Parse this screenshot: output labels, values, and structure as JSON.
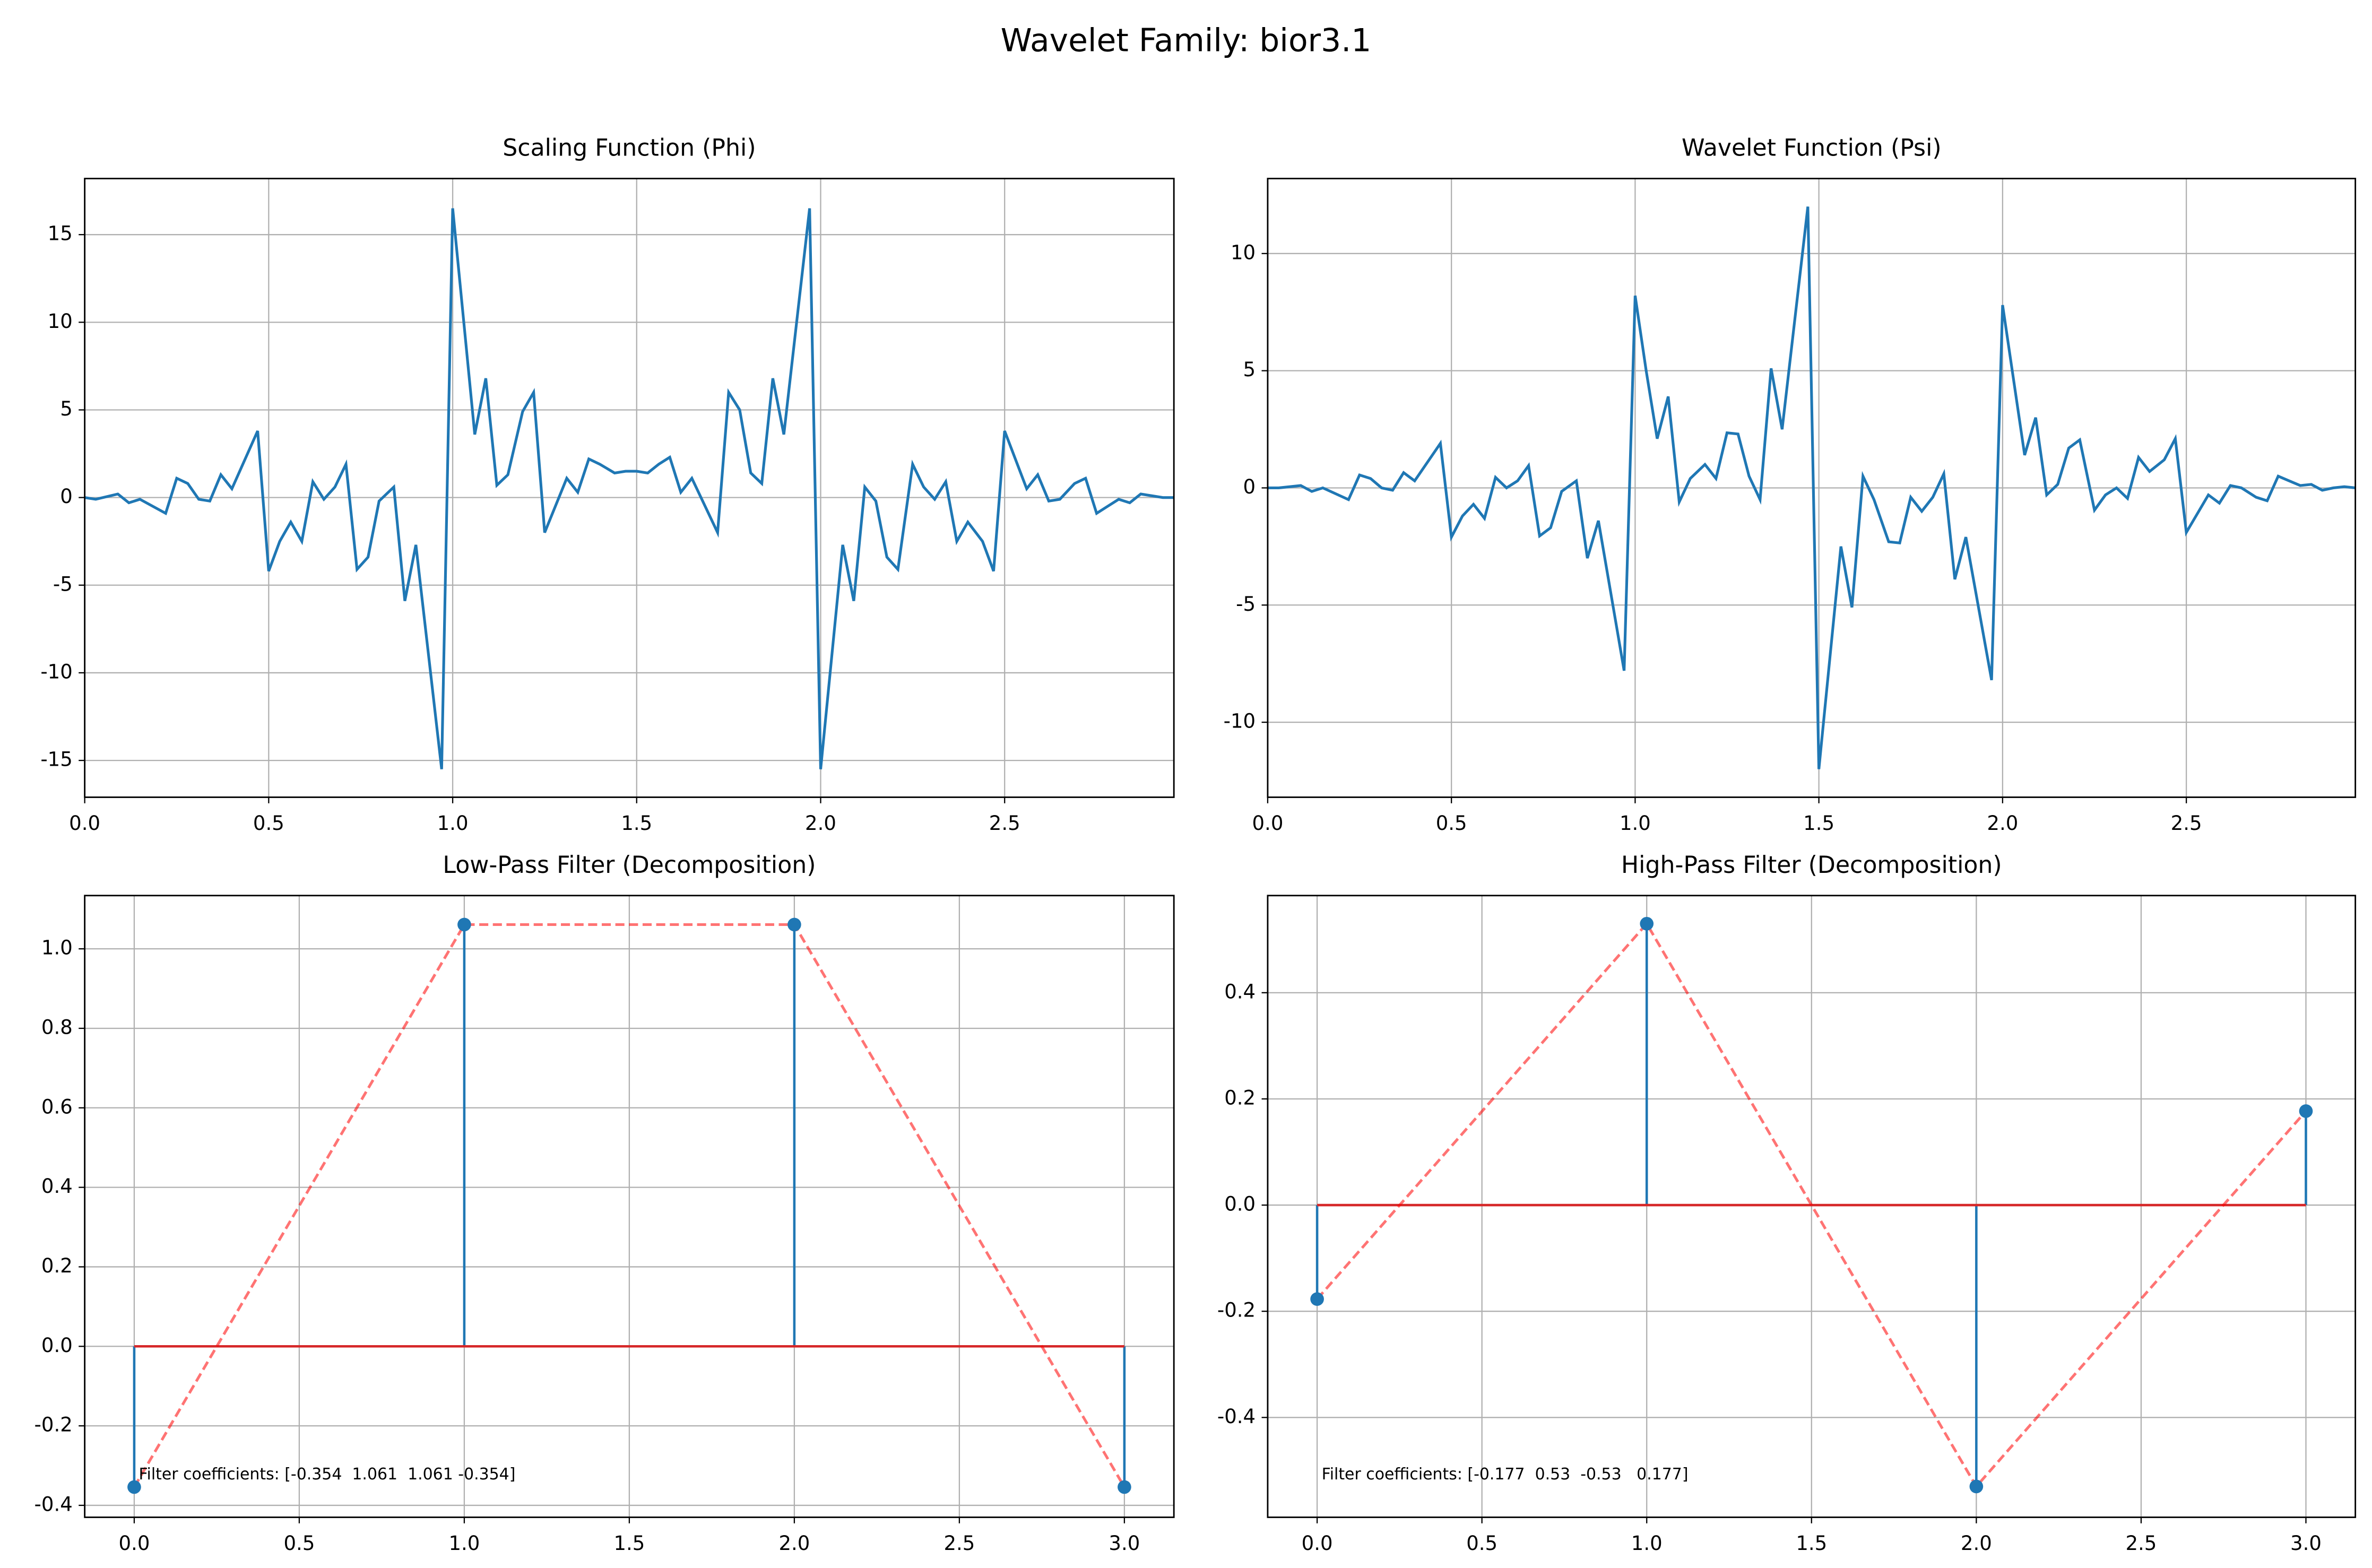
{
  "title": "Wavelet Family: bior3.1",
  "chart_data": [
    {
      "type": "line",
      "title": "Scaling Function (Phi)",
      "color": "#1f77b4",
      "grid": true,
      "x": [
        0,
        0.03,
        0.09,
        0.12,
        0.15,
        0.22,
        0.25,
        0.28,
        0.31,
        0.34,
        0.37,
        0.4,
        0.47,
        0.5,
        0.53,
        0.56,
        0.59,
        0.62,
        0.65,
        0.68,
        0.71,
        0.74,
        0.77,
        0.8,
        0.84,
        0.87,
        0.9,
        0.97,
        1.0,
        1.06,
        1.09,
        1.12,
        1.15,
        1.19,
        1.22,
        1.25,
        1.31,
        1.34,
        1.37,
        1.4,
        1.44,
        1.47,
        1.5,
        1.53,
        1.56,
        1.59,
        1.62,
        1.65,
        1.72,
        1.75,
        1.78,
        1.81,
        1.84,
        1.87,
        1.9,
        1.97,
        2.0,
        2.06,
        2.09,
        2.12,
        2.15,
        2.18,
        2.21,
        2.25,
        2.28,
        2.31,
        2.34,
        2.37,
        2.4,
        2.44,
        2.47,
        2.5,
        2.56,
        2.59,
        2.62,
        2.65,
        2.69,
        2.72,
        2.75,
        2.78,
        2.81,
        2.84,
        2.87,
        2.9,
        2.93,
        2.96
      ],
      "values": [
        0,
        -0.1,
        0.2,
        -0.3,
        -0.1,
        -0.9,
        1.1,
        0.8,
        -0.1,
        -0.2,
        1.3,
        0.5,
        3.8,
        -4.2,
        -2.5,
        -1.4,
        -2.5,
        0.9,
        -0.1,
        0.6,
        1.9,
        -4.1,
        -3.4,
        -0.2,
        0.6,
        -5.9,
        -2.7,
        -15.5,
        16.5,
        3.6,
        6.8,
        0.7,
        1.3,
        4.9,
        6.0,
        -2.0,
        1.1,
        0.3,
        2.2,
        1.9,
        1.4,
        1.5,
        1.5,
        1.4,
        1.9,
        2.3,
        0.3,
        1.1,
        -2.0,
        6.0,
        5.0,
        1.4,
        0.8,
        6.8,
        3.6,
        16.5,
        -15.5,
        -2.7,
        -5.9,
        0.6,
        -0.2,
        -3.4,
        -4.1,
        1.9,
        0.6,
        -0.1,
        0.9,
        -2.5,
        -1.4,
        -2.5,
        -4.2,
        3.8,
        0.5,
        1.3,
        -0.2,
        -0.1,
        0.8,
        1.1,
        -0.9,
        -0.5,
        -0.1,
        -0.3,
        0.2,
        0.1,
        0,
        0
      ],
      "xlim": [
        0,
        2.96
      ],
      "ylim": [
        -17.1,
        18.2
      ],
      "xticks": [
        {
          "value": 0,
          "label": "0.0"
        },
        0.5,
        {
          "value": 1,
          "label": "1.0"
        },
        1.5,
        {
          "value": 2,
          "label": "2.0"
        },
        2.5
      ],
      "yticks": [
        -15,
        -10,
        -5,
        0,
        5,
        10,
        15
      ]
    },
    {
      "type": "line",
      "title": "Wavelet Function (Psi)",
      "color": "#1f77b4",
      "grid": true,
      "x": [
        0,
        0.03,
        0.09,
        0.12,
        0.15,
        0.22,
        0.25,
        0.28,
        0.31,
        0.34,
        0.37,
        0.4,
        0.47,
        0.5,
        0.53,
        0.56,
        0.59,
        0.62,
        0.65,
        0.68,
        0.71,
        0.74,
        0.77,
        0.8,
        0.84,
        0.87,
        0.9,
        0.97,
        1.0,
        1.03,
        1.06,
        1.09,
        1.12,
        1.15,
        1.19,
        1.22,
        1.25,
        1.28,
        1.31,
        1.34,
        1.37,
        1.4,
        1.47,
        1.5,
        1.56,
        1.59,
        1.62,
        1.65,
        1.69,
        1.72,
        1.75,
        1.78,
        1.81,
        1.84,
        1.87,
        1.9,
        1.97,
        2.0,
        2.06,
        2.09,
        2.12,
        2.15,
        2.18,
        2.21,
        2.25,
        2.28,
        2.31,
        2.34,
        2.37,
        2.4,
        2.44,
        2.47,
        2.5,
        2.56,
        2.59,
        2.62,
        2.65,
        2.69,
        2.72,
        2.75,
        2.78,
        2.81,
        2.84,
        2.87,
        2.9,
        2.93,
        2.96
      ],
      "values": [
        0,
        0,
        0.1,
        -0.15,
        0,
        -0.5,
        0.55,
        0.4,
        0,
        -0.1,
        0.65,
        0.3,
        1.9,
        -2.1,
        -1.2,
        -0.7,
        -1.3,
        0.45,
        0,
        0.3,
        0.95,
        -2.05,
        -1.7,
        -0.15,
        0.3,
        -3.0,
        -1.4,
        -7.8,
        8.2,
        5.0,
        2.1,
        3.9,
        -0.6,
        0.4,
        1.0,
        0.4,
        2.35,
        2.3,
        0.5,
        -0.5,
        5.1,
        2.5,
        12.0,
        -12.0,
        -2.5,
        -5.1,
        0.5,
        -0.5,
        -2.3,
        -2.35,
        -0.4,
        -1.0,
        -0.4,
        0.6,
        -3.9,
        -2.1,
        -8.2,
        7.8,
        1.4,
        3.0,
        -0.3,
        0.15,
        1.7,
        2.05,
        -0.95,
        -0.3,
        0,
        -0.45,
        1.3,
        0.7,
        1.2,
        2.1,
        -1.9,
        -0.3,
        -0.65,
        0.1,
        0,
        -0.4,
        -0.55,
        0.5,
        0.3,
        0.1,
        0.15,
        -0.1,
        0,
        0.05,
        0
      ],
      "xlim": [
        0,
        2.96
      ],
      "ylim": [
        -13.2,
        13.2
      ],
      "xticks": [
        {
          "value": 0,
          "label": "0.0"
        },
        0.5,
        {
          "value": 1,
          "label": "1.0"
        },
        1.5,
        {
          "value": 2,
          "label": "2.0"
        },
        2.5
      ],
      "yticks": [
        -10,
        -5,
        0,
        5,
        10
      ]
    },
    {
      "type": "stem",
      "title": "Low-Pass Filter (Decomposition)",
      "color": "#1f77b4",
      "baseline_color": "#d62728",
      "connect_color": "#ff0000",
      "grid": true,
      "x": [
        0,
        1,
        2,
        3
      ],
      "values": [
        -0.354,
        1.061,
        1.061,
        -0.354
      ],
      "annotation": "Filter coefficients: [-0.354  1.061  1.061 -0.354]",
      "xlim": [
        -0.15,
        3.15
      ],
      "ylim": [
        -0.43,
        1.134
      ],
      "xticks": [
        {
          "value": 0,
          "label": "0.0"
        },
        0.5,
        {
          "value": 1,
          "label": "1.0"
        },
        1.5,
        {
          "value": 2,
          "label": "2.0"
        },
        2.5,
        {
          "value": 3,
          "label": "3.0"
        }
      ],
      "yticks": [
        -0.4,
        -0.2,
        {
          "value": 0,
          "label": "0.0"
        },
        0.2,
        0.4,
        0.6,
        0.8,
        {
          "value": 1,
          "label": "1.0"
        }
      ]
    },
    {
      "type": "stem",
      "title": "High-Pass Filter (Decomposition)",
      "color": "#1f77b4",
      "baseline_color": "#d62728",
      "connect_color": "#ff0000",
      "grid": true,
      "x": [
        0,
        1,
        2,
        3
      ],
      "values": [
        -0.177,
        0.53,
        -0.53,
        0.177
      ],
      "annotation": "Filter coefficients: [-0.177  0.53  -0.53   0.177]",
      "xlim": [
        -0.15,
        3.15
      ],
      "ylim": [
        -0.588,
        0.583
      ],
      "xticks": [
        {
          "value": 0,
          "label": "0.0"
        },
        0.5,
        {
          "value": 1,
          "label": "1.0"
        },
        1.5,
        {
          "value": 2,
          "label": "2.0"
        },
        2.5,
        {
          "value": 3,
          "label": "3.0"
        }
      ],
      "yticks": [
        -0.4,
        -0.2,
        {
          "value": 0,
          "label": "0.0"
        },
        0.2,
        0.4
      ]
    }
  ]
}
